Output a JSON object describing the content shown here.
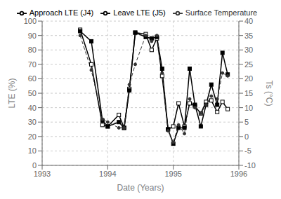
{
  "chart_data": {
    "type": "line",
    "xlabel": "Date (Years)",
    "ylabel": "LTE (%)",
    "y2label": "Ts (°C)",
    "x": [
      1993.58,
      1993.75,
      1993.92,
      1994.0,
      1994.17,
      1994.25,
      1994.33,
      1994.42,
      1994.58,
      1994.67,
      1994.75,
      1994.83,
      1994.92,
      1995.0,
      1995.08,
      1995.17,
      1995.25,
      1995.33,
      1995.42,
      1995.5,
      1995.58,
      1995.67,
      1995.75,
      1995.83
    ],
    "xlim": [
      1993,
      1996
    ],
    "xticks": [
      1993,
      1994,
      1995,
      1996
    ],
    "ylim": [
      0,
      100
    ],
    "yticks": [
      0,
      10,
      20,
      30,
      40,
      50,
      60,
      70,
      80,
      90,
      100
    ],
    "y2lim": [
      -10,
      40
    ],
    "y2ticks": [
      -10,
      -5,
      0,
      5,
      10,
      15,
      20,
      25,
      30,
      35,
      40
    ],
    "grid": true,
    "legend": "top",
    "series": [
      {
        "name": "Approach LTE (J4)",
        "color": "#000000",
        "marker": "open_square",
        "line_style": "solid",
        "values": [
          94,
          70,
          28,
          27,
          35,
          26,
          53,
          92,
          91,
          80,
          88,
          62,
          25,
          27,
          43,
          27,
          43,
          41,
          36,
          44,
          45,
          37,
          44,
          39
        ]
      },
      {
        "name": "Leave LTE (J5)",
        "color": "#000000",
        "marker": "square",
        "line_style": "solid",
        "values": [
          93,
          86,
          31,
          27,
          30,
          26,
          52,
          92,
          89,
          88,
          89,
          67,
          25,
          15,
          26,
          26,
          67,
          42,
          27,
          42,
          56,
          42,
          78,
          63
        ]
      },
      {
        "name": "Surface Temperature",
        "color": "#333333",
        "marker": "point",
        "line_style": "dashed",
        "axis": "y2",
        "values": [
          35,
          23,
          6,
          5,
          3,
          3,
          18,
          25,
          35,
          33,
          35,
          22,
          2,
          -2,
          4,
          1,
          13,
          10,
          8,
          11,
          14,
          13,
          22,
          21
        ]
      }
    ]
  }
}
